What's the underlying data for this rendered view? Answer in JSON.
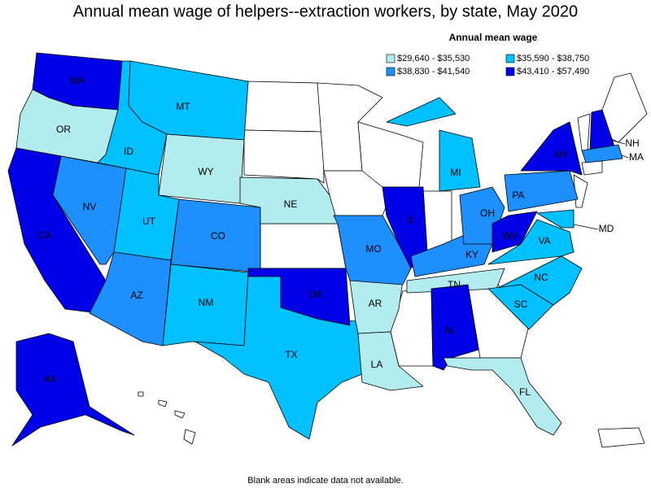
{
  "title": "Annual mean wage of helpers--extraction workers, by state, May 2020",
  "legend": {
    "title": "Annual mean wage",
    "bins": [
      {
        "label": "$29,640 - $35,530",
        "color": "#b2ecee"
      },
      {
        "label": "$35,590 - $38,750",
        "color": "#00c0ff"
      },
      {
        "label": "$38,830 - $41,540",
        "color": "#1e8fff"
      },
      {
        "label": "$43,410 - $57,490",
        "color": "#0000e6"
      }
    ]
  },
  "states": [
    {
      "label": "WA",
      "bin": 3
    },
    {
      "label": "OR",
      "bin": 0
    },
    {
      "label": "CA",
      "bin": 3
    },
    {
      "label": "NV",
      "bin": 2
    },
    {
      "label": "ID",
      "bin": 1
    },
    {
      "label": "MT",
      "bin": 1
    },
    {
      "label": "WY",
      "bin": 0
    },
    {
      "label": "UT",
      "bin": 1
    },
    {
      "label": "CO",
      "bin": 2
    },
    {
      "label": "AZ",
      "bin": 2
    },
    {
      "label": "NM",
      "bin": 1
    },
    {
      "label": "TX",
      "bin": 1
    },
    {
      "label": "NE",
      "bin": 0
    },
    {
      "label": "OK",
      "bin": 3
    },
    {
      "label": "AR",
      "bin": 0
    },
    {
      "label": "LA",
      "bin": 0
    },
    {
      "label": "MO",
      "bin": 2
    },
    {
      "label": "IL",
      "bin": 3
    },
    {
      "label": "TN",
      "bin": 0
    },
    {
      "label": "KY",
      "bin": 2
    },
    {
      "label": "AL",
      "bin": 3
    },
    {
      "label": "OH",
      "bin": 2
    },
    {
      "label": "MI",
      "bin": 1
    },
    {
      "label": "WV",
      "bin": 3
    },
    {
      "label": "VA",
      "bin": 1
    },
    {
      "label": "NC",
      "bin": 1
    },
    {
      "label": "SC",
      "bin": 1
    },
    {
      "label": "PA",
      "bin": 2
    },
    {
      "label": "NY",
      "bin": 3
    },
    {
      "label": "MD",
      "bin": 1
    },
    {
      "label": "NH",
      "bin": 3
    },
    {
      "label": "MA",
      "bin": 2
    },
    {
      "label": "FL",
      "bin": 0
    },
    {
      "label": "AK",
      "bin": 3
    }
  ],
  "note": "Blank areas indicate data not available."
}
